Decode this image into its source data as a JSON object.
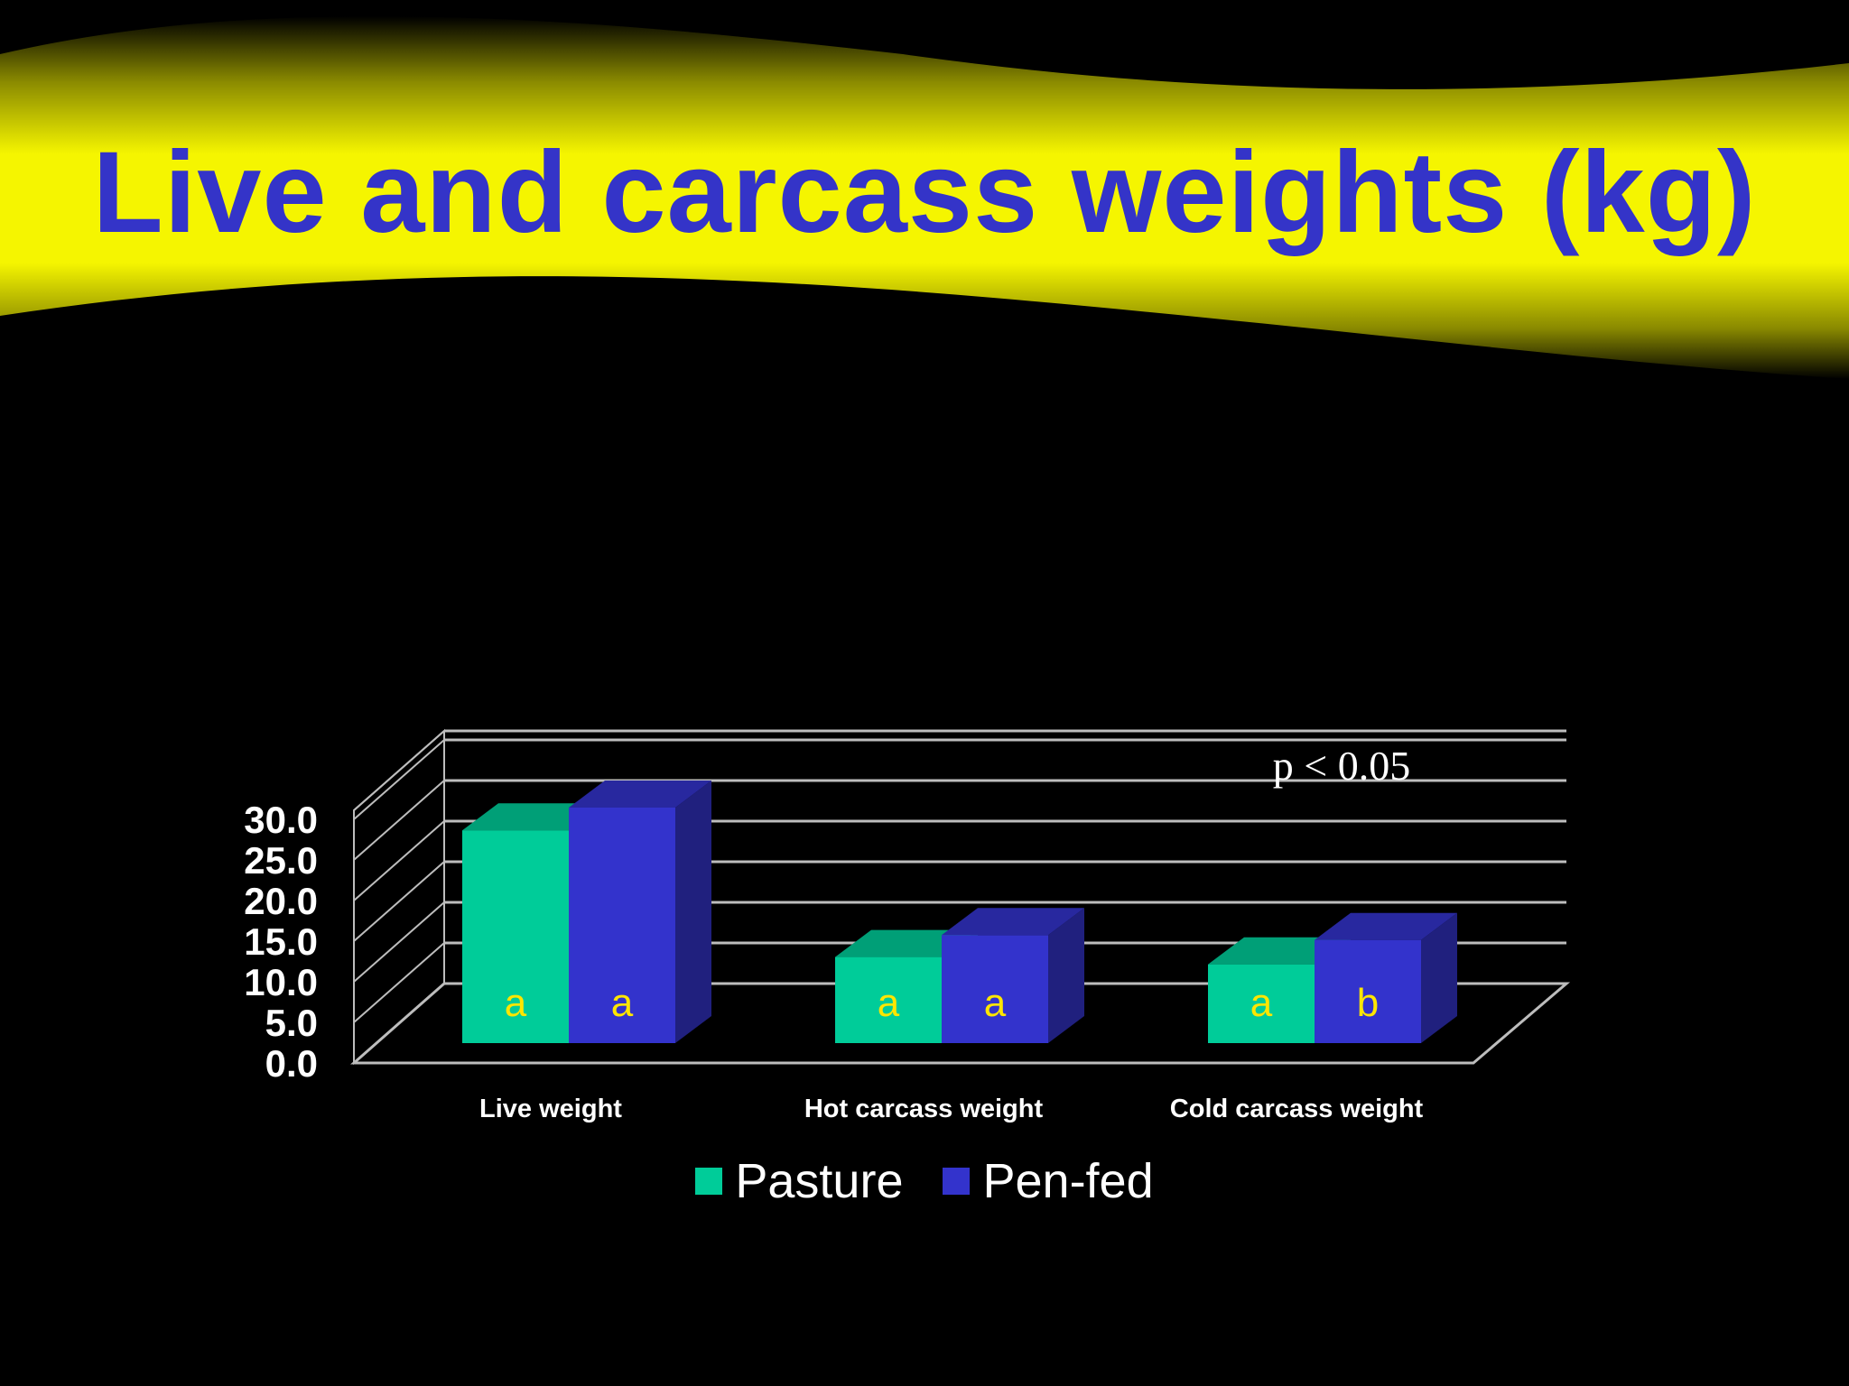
{
  "title": "Live and carcass weights (kg)",
  "colors": {
    "background": "#000000",
    "banner": "#F5F500",
    "title": "#3434C8",
    "pasture": "#00CC99",
    "penfed": "#3333CC",
    "significance": "#FFE600"
  },
  "annotation": "p < 0.05",
  "legend": [
    {
      "label": "Pasture",
      "color": "#00CC99"
    },
    {
      "label": "Pen-fed",
      "color": "#3333CC"
    }
  ],
  "chart_data": {
    "type": "bar",
    "style": "3d-clustered-column",
    "categories": [
      "Live weight",
      "Hot carcass weight",
      "Cold carcass weight"
    ],
    "series": [
      {
        "name": "Pasture",
        "values": [
          26.2,
          10.6,
          9.7
        ],
        "significance": [
          "a",
          "a",
          "a"
        ]
      },
      {
        "name": "Pen-fed",
        "values": [
          29.0,
          13.3,
          12.7
        ],
        "significance": [
          "a",
          "a",
          "b"
        ]
      }
    ],
    "ylim": [
      0,
      30
    ],
    "yticks": [
      "0.0",
      "5.0",
      "10.0",
      "15.0",
      "20.0",
      "25.0",
      "30.0"
    ],
    "grid": true,
    "legend_position": "bottom"
  }
}
